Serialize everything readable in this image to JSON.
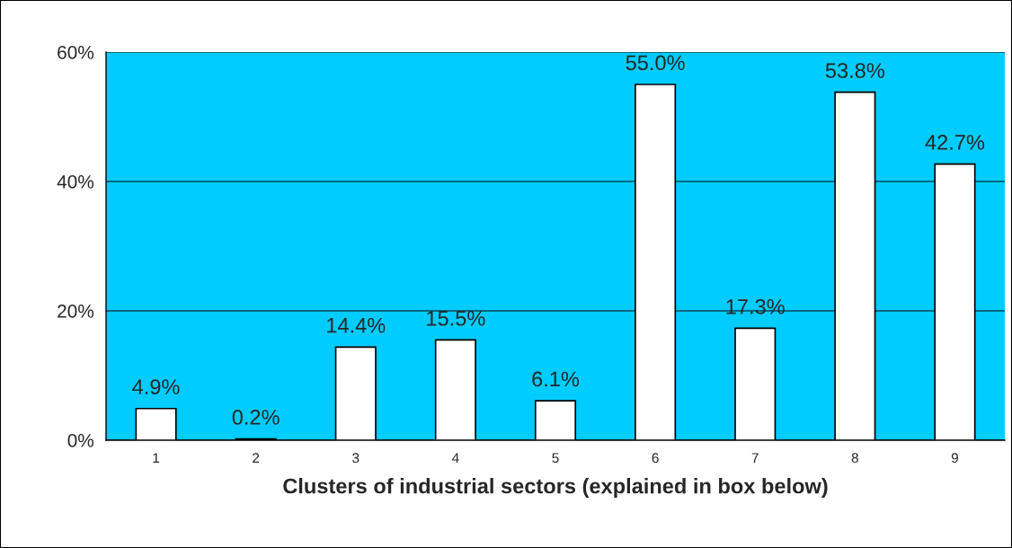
{
  "chart_data": {
    "type": "bar",
    "xlabel": "Clusters of industrial sectors (explained in box below)",
    "categories": [
      "1",
      "2",
      "3",
      "4",
      "5",
      "6",
      "7",
      "8",
      "9"
    ],
    "values": [
      4.9,
      0.2,
      14.4,
      15.5,
      6.1,
      55.0,
      17.3,
      53.8,
      42.7
    ],
    "value_labels": [
      "4.9%",
      "0.2%",
      "14.4%",
      "15.5%",
      "6.1%",
      "55.0%",
      "17.3%",
      "53.8%",
      "42.7%"
    ],
    "color": "#ffffff",
    "ylim": [
      0,
      60
    ],
    "yticks": [
      {
        "value": 0,
        "label": "0%"
      },
      {
        "value": 20,
        "label": "20%"
      },
      {
        "value": 40,
        "label": "40%"
      },
      {
        "value": 60,
        "label": "60%"
      }
    ],
    "grid": "y",
    "legend": false
  }
}
